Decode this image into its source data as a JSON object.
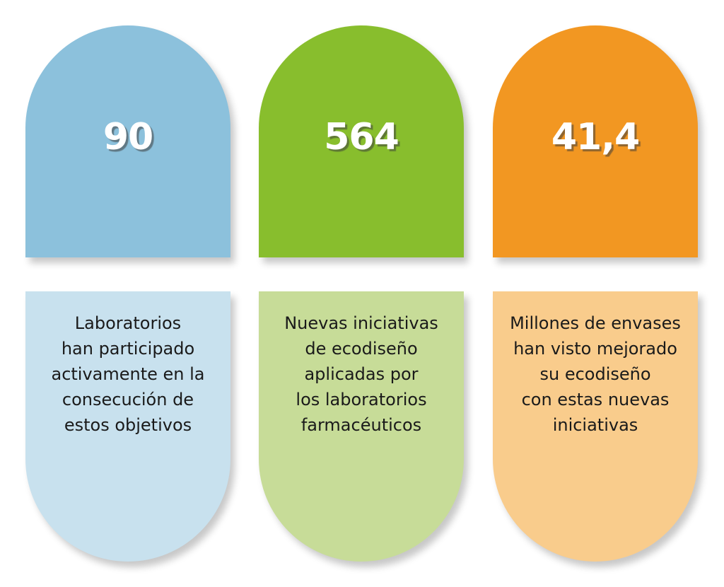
{
  "stats": [
    {
      "value": "90",
      "description": "Laboratorios\nhan participado\nactivamente en la\nconsecución de\nestos objetivos",
      "top_color": "#8cc1dc",
      "bottom_color": "#c8e1ee"
    },
    {
      "value": "564",
      "description": "Nuevas iniciativas\nde ecodiseño\naplicadas por\nlos laboratorios\nfarmacéuticos",
      "top_color": "#88be2d",
      "bottom_color": "#c7dc98"
    },
    {
      "value": "41,4",
      "description": "Millones de envases\nhan visto mejorado\nsu ecodiseño\ncon estas nuevas\niniciativas",
      "top_color": "#f29722",
      "bottom_color": "#f9cc8c"
    }
  ]
}
